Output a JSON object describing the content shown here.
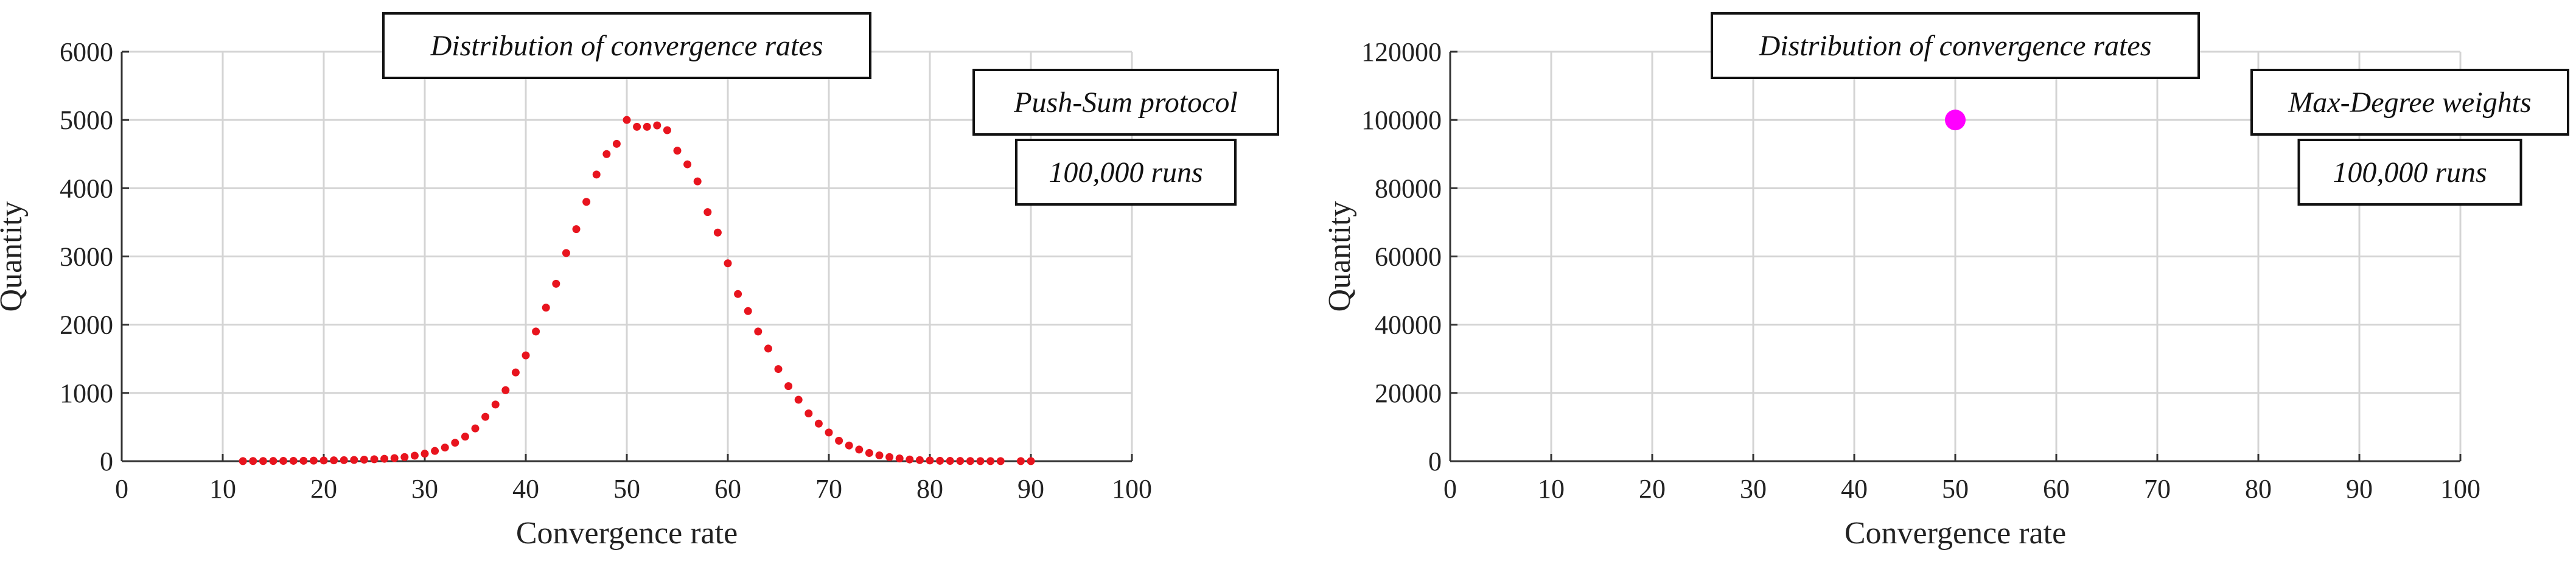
{
  "chart_data": [
    {
      "type": "scatter",
      "title": "Distribution of convergence rates",
      "xlabel": "Convergence rate",
      "ylabel": "Quantity",
      "xlim": [
        0,
        100
      ],
      "ylim": [
        0,
        6000
      ],
      "xticks": [
        0,
        10,
        20,
        30,
        40,
        50,
        60,
        70,
        80,
        90,
        100
      ],
      "yticks": [
        0,
        1000,
        2000,
        3000,
        4000,
        5000,
        6000
      ],
      "grid": true,
      "annotations": [
        "Push-Sum protocol",
        "100,000 runs"
      ],
      "series": [
        {
          "color": "#e8141e",
          "marker": "dot",
          "x": [
            12,
            13,
            14,
            15,
            16,
            17,
            18,
            19,
            20,
            21,
            22,
            23,
            24,
            25,
            26,
            27,
            28,
            29,
            30,
            31,
            32,
            33,
            34,
            35,
            36,
            37,
            38,
            39,
            40,
            41,
            42,
            43,
            44,
            45,
            46,
            47,
            48,
            49,
            50,
            51,
            52,
            53,
            54,
            55,
            56,
            57,
            58,
            59,
            60,
            61,
            62,
            63,
            64,
            65,
            66,
            67,
            68,
            69,
            70,
            71,
            72,
            73,
            74,
            75,
            76,
            77,
            78,
            79,
            80,
            81,
            82,
            83,
            84,
            85,
            86,
            87,
            89,
            90
          ],
          "y": [
            1,
            2,
            2,
            3,
            4,
            5,
            6,
            8,
            10,
            12,
            15,
            18,
            22,
            28,
            35,
            45,
            60,
            80,
            110,
            150,
            200,
            270,
            360,
            480,
            650,
            830,
            1040,
            1300,
            1550,
            1900,
            2250,
            2600,
            3050,
            3400,
            3800,
            4200,
            4500,
            4650,
            5000,
            4900,
            4900,
            4920,
            4850,
            4550,
            4350,
            4100,
            3650,
            3350,
            2900,
            2450,
            2200,
            1900,
            1650,
            1350,
            1100,
            900,
            700,
            550,
            420,
            300,
            230,
            170,
            120,
            85,
            60,
            40,
            25,
            16,
            10,
            6,
            4,
            3,
            2,
            1,
            1,
            1,
            1,
            1
          ]
        }
      ]
    },
    {
      "type": "scatter",
      "title": "Distribution of convergence rates",
      "xlabel": "Convergence rate",
      "ylabel": "Quantity",
      "xlim": [
        0,
        100
      ],
      "ylim": [
        0,
        120000
      ],
      "xticks": [
        0,
        10,
        20,
        30,
        40,
        50,
        60,
        70,
        80,
        90,
        100
      ],
      "yticks": [
        0,
        20000,
        40000,
        60000,
        80000,
        100000,
        120000
      ],
      "grid": true,
      "annotations": [
        "Max-Degree weights",
        "100,000 runs"
      ],
      "series": [
        {
          "color": "#ff00ff",
          "marker": "dot-large",
          "x": [
            50
          ],
          "y": [
            100000
          ]
        }
      ]
    }
  ]
}
